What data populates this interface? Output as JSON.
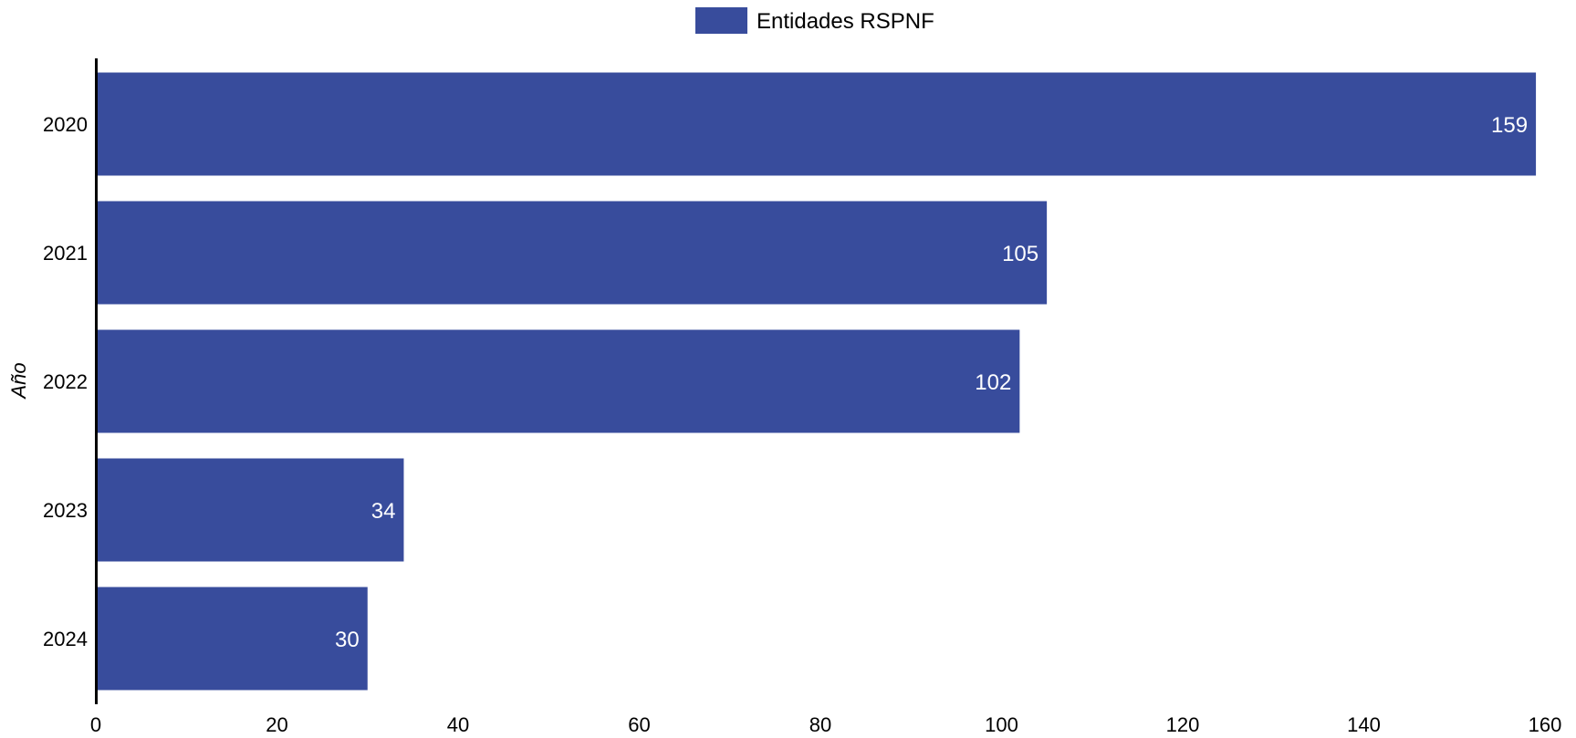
{
  "chart_data": {
    "type": "bar",
    "orientation": "horizontal",
    "categories": [
      "2020",
      "2021",
      "2022",
      "2023",
      "2024"
    ],
    "series": [
      {
        "name": "Entidades RSPNF",
        "values": [
          159,
          105,
          102,
          34,
          30
        ],
        "color": "#384c9c"
      }
    ],
    "xlabel": "",
    "ylabel": "Año",
    "xlim": [
      0,
      160
    ],
    "xticks": [
      "0",
      "20",
      "40",
      "60",
      "80",
      "100",
      "120",
      "140",
      "160"
    ],
    "grid": false,
    "legend": "top-center",
    "data_labels": true
  }
}
